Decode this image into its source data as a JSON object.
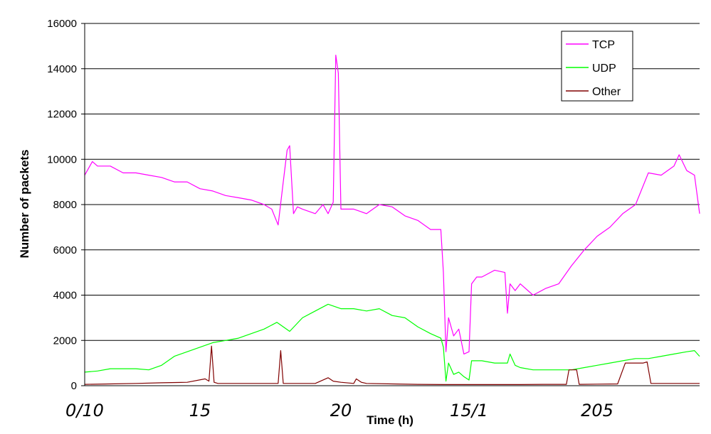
{
  "chart_data": {
    "type": "line",
    "xlabel": "Time (h)",
    "ylabel": "Number of packets",
    "ylim": [
      0,
      16000
    ],
    "yticks": [
      "0",
      "2000",
      "4000",
      "6000",
      "8000",
      "10000",
      "12000",
      "14000",
      "16000"
    ],
    "xlim": [
      0,
      24
    ],
    "x_hand_labels": [
      {
        "x": 0,
        "text": "0/10"
      },
      {
        "x": 4.5,
        "text": "15"
      },
      {
        "x": 10,
        "text": "20"
      },
      {
        "x": 15,
        "text": "15/1"
      },
      {
        "x": 20,
        "text": "205"
      }
    ],
    "grid": true,
    "legend": "top-right",
    "series": [
      {
        "name": "TCP",
        "color": "#ff00ff",
        "x": [
          0,
          0.3,
          0.5,
          1,
          1.5,
          2,
          2.5,
          3,
          3.5,
          4,
          4.5,
          5,
          5.5,
          6,
          6.5,
          7,
          7.3,
          7.55,
          7.75,
          7.9,
          8.0,
          8.15,
          8.3,
          8.5,
          9,
          9.3,
          9.5,
          9.7,
          9.8,
          9.9,
          10,
          10.5,
          11,
          11.5,
          12,
          12.5,
          13,
          13.5,
          13.9,
          14.0,
          14.1,
          14.2,
          14.4,
          14.6,
          14.8,
          15.0,
          15.1,
          15.3,
          15.5,
          16,
          16.4,
          16.5,
          16.6,
          16.8,
          17,
          17.5,
          18,
          18.5,
          19,
          19.5,
          20,
          20.5,
          21,
          21.5,
          22,
          22.5,
          23,
          23.2,
          23.5,
          23.8,
          24
        ],
        "values": [
          9300,
          9900,
          9700,
          9700,
          9400,
          9400,
          9300,
          9200,
          9000,
          9000,
          8700,
          8600,
          8400,
          8300,
          8200,
          8000,
          7800,
          7100,
          9000,
          10400,
          10600,
          7600,
          7900,
          7800,
          7600,
          8000,
          7600,
          8100,
          14600,
          13800,
          7800,
          7800,
          7600,
          8000,
          7900,
          7500,
          7300,
          6900,
          6900,
          5000,
          1500,
          3000,
          2200,
          2500,
          1400,
          1500,
          4500,
          4800,
          4800,
          5100,
          5000,
          3200,
          4500,
          4200,
          4500,
          4000,
          4300,
          4500,
          5300,
          6000,
          6600,
          7000,
          7600,
          8000,
          9400,
          9300,
          9700,
          10200,
          9500,
          9300,
          7600
        ]
      },
      {
        "name": "UDP",
        "color": "#00ff00",
        "x": [
          0,
          0.5,
          1,
          2,
          2.5,
          3,
          3.5,
          4,
          4.5,
          5,
          5.5,
          6,
          6.5,
          7,
          7.5,
          8,
          8.5,
          9,
          9.5,
          10,
          10.5,
          11,
          11.5,
          12,
          12.5,
          13,
          13.5,
          13.9,
          14.0,
          14.1,
          14.2,
          14.4,
          14.6,
          14.8,
          15.0,
          15.1,
          15.5,
          16,
          16.5,
          16.6,
          16.8,
          17,
          17.5,
          18,
          18.5,
          19,
          19.5,
          20,
          20.5,
          21,
          21.5,
          22,
          22.5,
          23,
          23.5,
          23.8,
          24
        ],
        "values": [
          600,
          650,
          750,
          750,
          700,
          900,
          1300,
          1500,
          1700,
          1900,
          2000,
          2100,
          2300,
          2500,
          2800,
          2400,
          3000,
          3300,
          3600,
          3400,
          3400,
          3300,
          3400,
          3100,
          3000,
          2600,
          2300,
          2100,
          1700,
          200,
          1000,
          500,
          600,
          400,
          250,
          1100,
          1100,
          1000,
          1000,
          1400,
          900,
          800,
          700,
          700,
          700,
          700,
          800,
          900,
          1000,
          1100,
          1200,
          1200,
          1300,
          1400,
          1500,
          1550,
          1300
        ]
      },
      {
        "name": "Other",
        "color": "#800000",
        "x": [
          0,
          1,
          2,
          3,
          4,
          4.7,
          4.85,
          4.95,
          5.05,
          5.2,
          6,
          7,
          7.55,
          7.65,
          7.75,
          8,
          9,
          9.5,
          9.7,
          10,
          10.5,
          10.6,
          10.8,
          11,
          12,
          13,
          14,
          15,
          16,
          17,
          18,
          18.8,
          18.9,
          19.2,
          19.3,
          20,
          20.8,
          21.1,
          21.8,
          21.95,
          22.1,
          23,
          24
        ],
        "values": [
          60,
          80,
          100,
          130,
          150,
          300,
          200,
          1750,
          150,
          100,
          100,
          100,
          100,
          1550,
          100,
          100,
          100,
          350,
          200,
          150,
          100,
          300,
          150,
          100,
          80,
          60,
          50,
          50,
          50,
          50,
          60,
          60,
          700,
          700,
          60,
          70,
          80,
          1000,
          1000,
          1050,
          100,
          100,
          100
        ]
      }
    ]
  }
}
